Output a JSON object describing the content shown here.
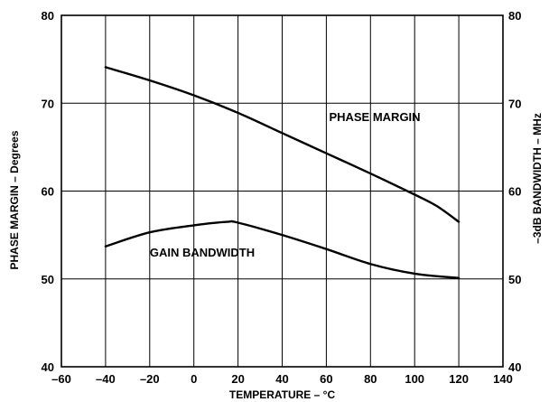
{
  "chart_data": {
    "type": "line",
    "xlabel": "TEMPERATURE – °C",
    "ylabel": "PHASE MARGIN – Degrees",
    "ylabel_right": "–3dB BANDWIDTH – MHz",
    "xlim": [
      -60,
      140
    ],
    "ylim": [
      40,
      80
    ],
    "ylim_right": [
      40,
      80
    ],
    "x_ticks": [
      -60,
      -40,
      -20,
      0,
      20,
      40,
      60,
      80,
      100,
      120,
      140
    ],
    "y_ticks": [
      40,
      50,
      60,
      70,
      80
    ],
    "x_tick_labels": [
      "–60",
      "–40",
      "–20",
      "0",
      "20",
      "40",
      "60",
      "80",
      "100",
      "120",
      "140"
    ],
    "y_tick_labels": [
      "40",
      "50",
      "60",
      "70",
      "80"
    ],
    "y_tick_labels_right": [
      "40",
      "50",
      "60",
      "70",
      "80"
    ],
    "grid": true,
    "series": [
      {
        "name": "PHASE MARGIN",
        "axis": "left",
        "x": [
          -40,
          -20,
          0,
          20,
          40,
          60,
          80,
          100,
          110,
          120
        ],
        "y": [
          74.1,
          72.6,
          70.9,
          68.9,
          66.6,
          64.3,
          62.0,
          59.6,
          58.3,
          56.5
        ]
      },
      {
        "name": "GAIN BANDWIDTH",
        "axis": "right",
        "x": [
          -40,
          -20,
          0,
          15,
          20,
          40,
          60,
          80,
          100,
          120
        ],
        "y": [
          53.7,
          55.3,
          56.1,
          56.5,
          56.4,
          55.0,
          53.4,
          51.7,
          50.6,
          50.1
        ]
      }
    ]
  }
}
